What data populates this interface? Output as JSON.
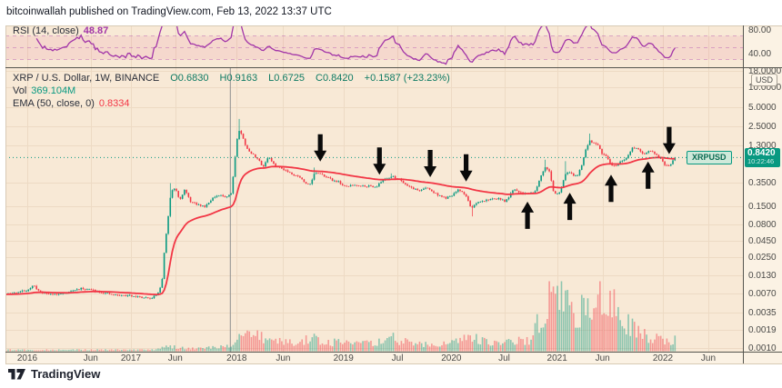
{
  "header": {
    "note": "bitcoinwallah published on TradingView.com, Feb 13, 2022 13:37 UTC"
  },
  "rsi_panel": {
    "label": "RSI (14, close)",
    "value": "48.87",
    "axis_labels": [
      "80.00",
      "40.00"
    ],
    "band_levels": [
      70,
      50,
      30
    ]
  },
  "main_panel": {
    "legend": {
      "symbol": "XRP / U.S. Dollar, 1W, BINANCE",
      "open": "O0.6830",
      "high": "H0.9163",
      "low": "L0.6725",
      "close": "C0.8420",
      "change": "+0.1587 (+23.23%)"
    },
    "vol_label": "Vol",
    "vol_value": "369.104M",
    "ema_label": "EMA (50, close, 0)",
    "ema_value": "0.8334"
  },
  "price_axis": {
    "currency": "USD",
    "labels": [
      "18.0000",
      "10.0000",
      "5.0000",
      "2.5000",
      "1.3000",
      "0.3500",
      "0.1500",
      "0.0800",
      "0.0450",
      "0.0250",
      "0.0130",
      "0.0070",
      "0.0035",
      "0.0019",
      "0.0010"
    ],
    "symbol_badge": "XRPUSD",
    "last_price": "0.8420",
    "countdown": "10:22:46"
  },
  "time_axis": {
    "labels": [
      {
        "t": 2016.0,
        "text": "2016"
      },
      {
        "t": 2016.6,
        "text": "Jun"
      },
      {
        "t": 2016.98,
        "text": "2017"
      },
      {
        "t": 2017.4,
        "text": "Jun"
      },
      {
        "t": 2017.98,
        "text": "2018"
      },
      {
        "t": 2018.42,
        "text": "Jun"
      },
      {
        "t": 2018.99,
        "text": "2019"
      },
      {
        "t": 2019.5,
        "text": "Jul"
      },
      {
        "t": 2020.01,
        "text": "2020"
      },
      {
        "t": 2020.51,
        "text": "Jul"
      },
      {
        "t": 2021.01,
        "text": "2021"
      },
      {
        "t": 2021.44,
        "text": "Jun"
      },
      {
        "t": 2022.01,
        "text": "2022"
      },
      {
        "t": 2022.44,
        "text": "Jun"
      }
    ]
  },
  "footer": {
    "brand": "TradingView"
  },
  "colors": {
    "bg": "#f8e9d6",
    "axis_bg": "#fbf2e4",
    "grid": "#eddac4",
    "up": "#089981",
    "down": "#f23645",
    "ema": "#f23645",
    "rsi_line": "#a235a8",
    "rsi_band": "rgba(216,27,96,0.08)",
    "rsi_dash": "rgba(162,53,168,0.35)",
    "vol_up": "rgba(8,153,129,0.45)",
    "vol_down": "rgba(242,54,69,0.45)",
    "divider": "#55554f",
    "marker_line": "#8f8f8f",
    "arrow": "#0a0a0a",
    "price_line": "#089981",
    "badge_bg": "#089981"
  },
  "chart_data": {
    "type": "candlestick",
    "title": "XRP / U.S. Dollar, 1W, BINANCE",
    "scale": "log",
    "price_range": [
      0.001,
      18.0
    ],
    "time_range": [
      2015.8,
      2022.55
    ],
    "last_bar": {
      "open": 0.683,
      "high": 0.9163,
      "low": 0.6725,
      "close": 0.842,
      "change": 0.1587,
      "change_pct": 23.23
    },
    "last_price": 0.842,
    "ema_value": 0.8334,
    "rsi_value": 48.87,
    "volume_value": "369.104M",
    "price_close_anchors": [
      [
        2015.6,
        0.006
      ],
      [
        2015.78,
        0.0066
      ],
      [
        2015.91,
        0.0072
      ],
      [
        2016.0,
        0.0078
      ],
      [
        2016.06,
        0.0091
      ],
      [
        2016.12,
        0.0073
      ],
      [
        2016.2,
        0.0068
      ],
      [
        2016.3,
        0.0067
      ],
      [
        2016.42,
        0.0075
      ],
      [
        2016.5,
        0.0082
      ],
      [
        2016.58,
        0.008
      ],
      [
        2016.7,
        0.0072
      ],
      [
        2016.8,
        0.0066
      ],
      [
        2016.9,
        0.0064
      ],
      [
        2017.0,
        0.0064
      ],
      [
        2017.08,
        0.006
      ],
      [
        2017.16,
        0.0057
      ],
      [
        2017.22,
        0.0065
      ],
      [
        2017.27,
        0.009
      ],
      [
        2017.3,
        0.036
      ],
      [
        2017.36,
        0.26
      ],
      [
        2017.4,
        0.29
      ],
      [
        2017.44,
        0.19
      ],
      [
        2017.49,
        0.27
      ],
      [
        2017.54,
        0.18
      ],
      [
        2017.6,
        0.16
      ],
      [
        2017.68,
        0.15
      ],
      [
        2017.75,
        0.2
      ],
      [
        2017.82,
        0.22
      ],
      [
        2017.88,
        0.21
      ],
      [
        2017.93,
        0.24
      ],
      [
        2017.96,
        0.72
      ],
      [
        2017.995,
        2.3
      ],
      [
        2018.03,
        1.85
      ],
      [
        2018.06,
        1.35
      ],
      [
        2018.1,
        1.02
      ],
      [
        2018.14,
        0.92
      ],
      [
        2018.18,
        0.8
      ],
      [
        2018.23,
        0.6
      ],
      [
        2018.28,
        0.88
      ],
      [
        2018.33,
        0.66
      ],
      [
        2018.4,
        0.58
      ],
      [
        2018.46,
        0.52
      ],
      [
        2018.52,
        0.46
      ],
      [
        2018.58,
        0.42
      ],
      [
        2018.63,
        0.33
      ],
      [
        2018.68,
        0.34
      ],
      [
        2018.72,
        0.5
      ],
      [
        2018.77,
        0.46
      ],
      [
        2018.82,
        0.44
      ],
      [
        2018.88,
        0.38
      ],
      [
        2018.94,
        0.36
      ],
      [
        2019.0,
        0.3
      ],
      [
        2019.1,
        0.32
      ],
      [
        2019.2,
        0.31
      ],
      [
        2019.3,
        0.3
      ],
      [
        2019.38,
        0.4
      ],
      [
        2019.45,
        0.43
      ],
      [
        2019.52,
        0.39
      ],
      [
        2019.6,
        0.31
      ],
      [
        2019.7,
        0.26
      ],
      [
        2019.78,
        0.29
      ],
      [
        2019.85,
        0.24
      ],
      [
        2019.95,
        0.2
      ],
      [
        2020.0,
        0.21
      ],
      [
        2020.08,
        0.27
      ],
      [
        2020.14,
        0.23
      ],
      [
        2020.2,
        0.14
      ],
      [
        2020.26,
        0.17
      ],
      [
        2020.35,
        0.19
      ],
      [
        2020.45,
        0.2
      ],
      [
        2020.52,
        0.177
      ],
      [
        2020.6,
        0.27
      ],
      [
        2020.68,
        0.24
      ],
      [
        2020.75,
        0.24
      ],
      [
        2020.8,
        0.25
      ],
      [
        2020.86,
        0.46
      ],
      [
        2020.9,
        0.62
      ],
      [
        2020.94,
        0.5
      ],
      [
        2020.97,
        0.27
      ],
      [
        2021.0,
        0.22
      ],
      [
        2021.04,
        0.26
      ],
      [
        2021.08,
        0.44
      ],
      [
        2021.12,
        0.52
      ],
      [
        2021.16,
        0.46
      ],
      [
        2021.2,
        0.44
      ],
      [
        2021.24,
        0.6
      ],
      [
        2021.28,
        1.1
      ],
      [
        2021.32,
        1.55
      ],
      [
        2021.36,
        1.38
      ],
      [
        2021.4,
        1.3
      ],
      [
        2021.43,
        0.95
      ],
      [
        2021.47,
        0.88
      ],
      [
        2021.52,
        0.65
      ],
      [
        2021.56,
        0.62
      ],
      [
        2021.6,
        0.72
      ],
      [
        2021.64,
        0.74
      ],
      [
        2021.68,
        0.9
      ],
      [
        2021.72,
        1.2
      ],
      [
        2021.76,
        1.18
      ],
      [
        2021.8,
        1.02
      ],
      [
        2021.84,
        0.94
      ],
      [
        2021.88,
        1.08
      ],
      [
        2021.92,
        1.0
      ],
      [
        2021.96,
        0.88
      ],
      [
        2022.0,
        0.78
      ],
      [
        2022.03,
        0.63
      ],
      [
        2022.06,
        0.61
      ],
      [
        2022.09,
        0.683
      ],
      [
        2022.12,
        0.842
      ]
    ],
    "extreme_wicks": [
      [
        2017.995,
        3.3,
        "hi"
      ],
      [
        2017.36,
        0.34,
        "hi"
      ],
      [
        2018.72,
        0.59,
        "hi"
      ],
      [
        2019.45,
        0.48,
        "hi"
      ],
      [
        2020.2,
        0.105,
        "lo"
      ],
      [
        2020.9,
        0.78,
        "hi"
      ],
      [
        2021.08,
        0.74,
        "hi"
      ],
      [
        2021.32,
        1.96,
        "hi"
      ]
    ],
    "volume_height_anchors": [
      [
        2015.8,
        1.5
      ],
      [
        2017.2,
        1.5
      ],
      [
        2017.3,
        6
      ],
      [
        2017.45,
        4
      ],
      [
        2017.6,
        3
      ],
      [
        2017.9,
        5
      ],
      [
        2017.97,
        10
      ],
      [
        2018.02,
        20
      ],
      [
        2018.08,
        26
      ],
      [
        2018.15,
        18
      ],
      [
        2018.25,
        13
      ],
      [
        2018.4,
        10
      ],
      [
        2018.55,
        9
      ],
      [
        2018.7,
        15
      ],
      [
        2018.85,
        10
      ],
      [
        2019.0,
        9
      ],
      [
        2019.15,
        8
      ],
      [
        2019.3,
        9
      ],
      [
        2019.42,
        16
      ],
      [
        2019.55,
        11
      ],
      [
        2019.7,
        8
      ],
      [
        2019.85,
        7
      ],
      [
        2020.0,
        8
      ],
      [
        2020.1,
        12
      ],
      [
        2020.2,
        17
      ],
      [
        2020.35,
        9
      ],
      [
        2020.5,
        8
      ],
      [
        2020.62,
        13
      ],
      [
        2020.75,
        11
      ],
      [
        2020.86,
        40
      ],
      [
        2020.9,
        45
      ],
      [
        2020.96,
        76
      ],
      [
        2021.02,
        50
      ],
      [
        2021.08,
        68
      ],
      [
        2021.14,
        42
      ],
      [
        2021.2,
        28
      ],
      [
        2021.26,
        50
      ],
      [
        2021.3,
        58
      ],
      [
        2021.36,
        40
      ],
      [
        2021.42,
        66
      ],
      [
        2021.47,
        40
      ],
      [
        2021.52,
        50
      ],
      [
        2021.56,
        52
      ],
      [
        2021.62,
        26
      ],
      [
        2021.68,
        28
      ],
      [
        2021.72,
        32
      ],
      [
        2021.8,
        20
      ],
      [
        2021.88,
        16
      ],
      [
        2021.96,
        13
      ],
      [
        2022.04,
        11
      ],
      [
        2022.12,
        13
      ]
    ],
    "arrows": [
      {
        "dir": "down",
        "t": 2018.77,
        "price": 0.73
      },
      {
        "dir": "down",
        "t": 2019.33,
        "price": 0.46
      },
      {
        "dir": "down",
        "t": 2019.81,
        "price": 0.42
      },
      {
        "dir": "down",
        "t": 2020.15,
        "price": 0.36
      },
      {
        "dir": "down",
        "t": 2022.07,
        "price": 0.95
      },
      {
        "dir": "up",
        "t": 2020.73,
        "price": 0.177
      },
      {
        "dir": "up",
        "t": 2021.13,
        "price": 0.243
      },
      {
        "dir": "up",
        "t": 2021.52,
        "price": 0.46
      },
      {
        "dir": "up",
        "t": 2021.87,
        "price": 0.73
      }
    ],
    "vertical_marker_t": 2017.92
  }
}
